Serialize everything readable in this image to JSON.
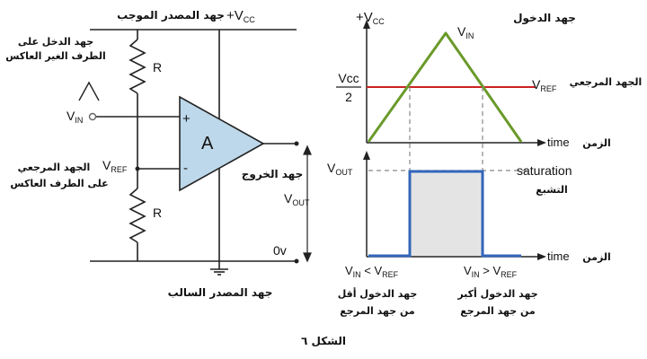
{
  "circuit": {
    "vcc_label_ar": "جهد المصدر الموجب",
    "vcc_plus": "+V",
    "vcc_sub": "CC",
    "input_title_line1": "جهد الدخل على",
    "input_title_line2": "الطرف الغير العاكس",
    "vin_main": "V",
    "vin_sub": "IN",
    "plus_sign": "+",
    "minus_sign": "-",
    "amp_label": "A",
    "resistor_top_label": "R",
    "resistor_bottom_label": "R",
    "vref_main": "V",
    "vref_sub": "REF",
    "vref_label_line1": "الجهد المرجعي",
    "vref_label_line2": "على الطرف العاكس",
    "output_label_ar": "جهد الخروج",
    "vout_main": "V",
    "vout_sub": "OUT",
    "zero_v": "0v",
    "ground_label_ar": "جهد المصدر السالب"
  },
  "input_graph": {
    "title_ar": "جهد الدخول",
    "vcc_plus": "+V",
    "vcc_sub": "CC",
    "vin_main": "V",
    "vin_sub": "IN",
    "half_num": "Vcc",
    "half_den": "2",
    "vref_main": "V",
    "vref_sub": "REF",
    "vref_ar": "الجهد المرجعي",
    "time_label": "time",
    "time_ar": "الزمن",
    "colors": {
      "ramp": "#6a9a2a",
      "ref": "#cc2222"
    }
  },
  "output_graph": {
    "vout_main": "V",
    "vout_sub": "OUT",
    "saturation": "saturation",
    "saturation_ar": "التشبع",
    "time_label": "time",
    "time_ar": "الزمن",
    "left_cond_a": "V",
    "left_cond_a_sub": "IN",
    "left_cond_op": " < V",
    "left_cond_b_sub": "REF",
    "right_cond_a": "V",
    "right_cond_a_sub": "IN",
    "right_cond_op": " > V",
    "right_cond_b_sub": "REF",
    "left_note_line1": "جهد الدخول أقل",
    "left_note_line2": "من جهد المرجع",
    "right_note_line1": "جهد الدخول أكبر",
    "right_note_line2": "من جهد المرجع",
    "colors": {
      "pulse": "#3366bb",
      "fill": "#e4e4e4"
    }
  },
  "caption": "الشكل ٦"
}
